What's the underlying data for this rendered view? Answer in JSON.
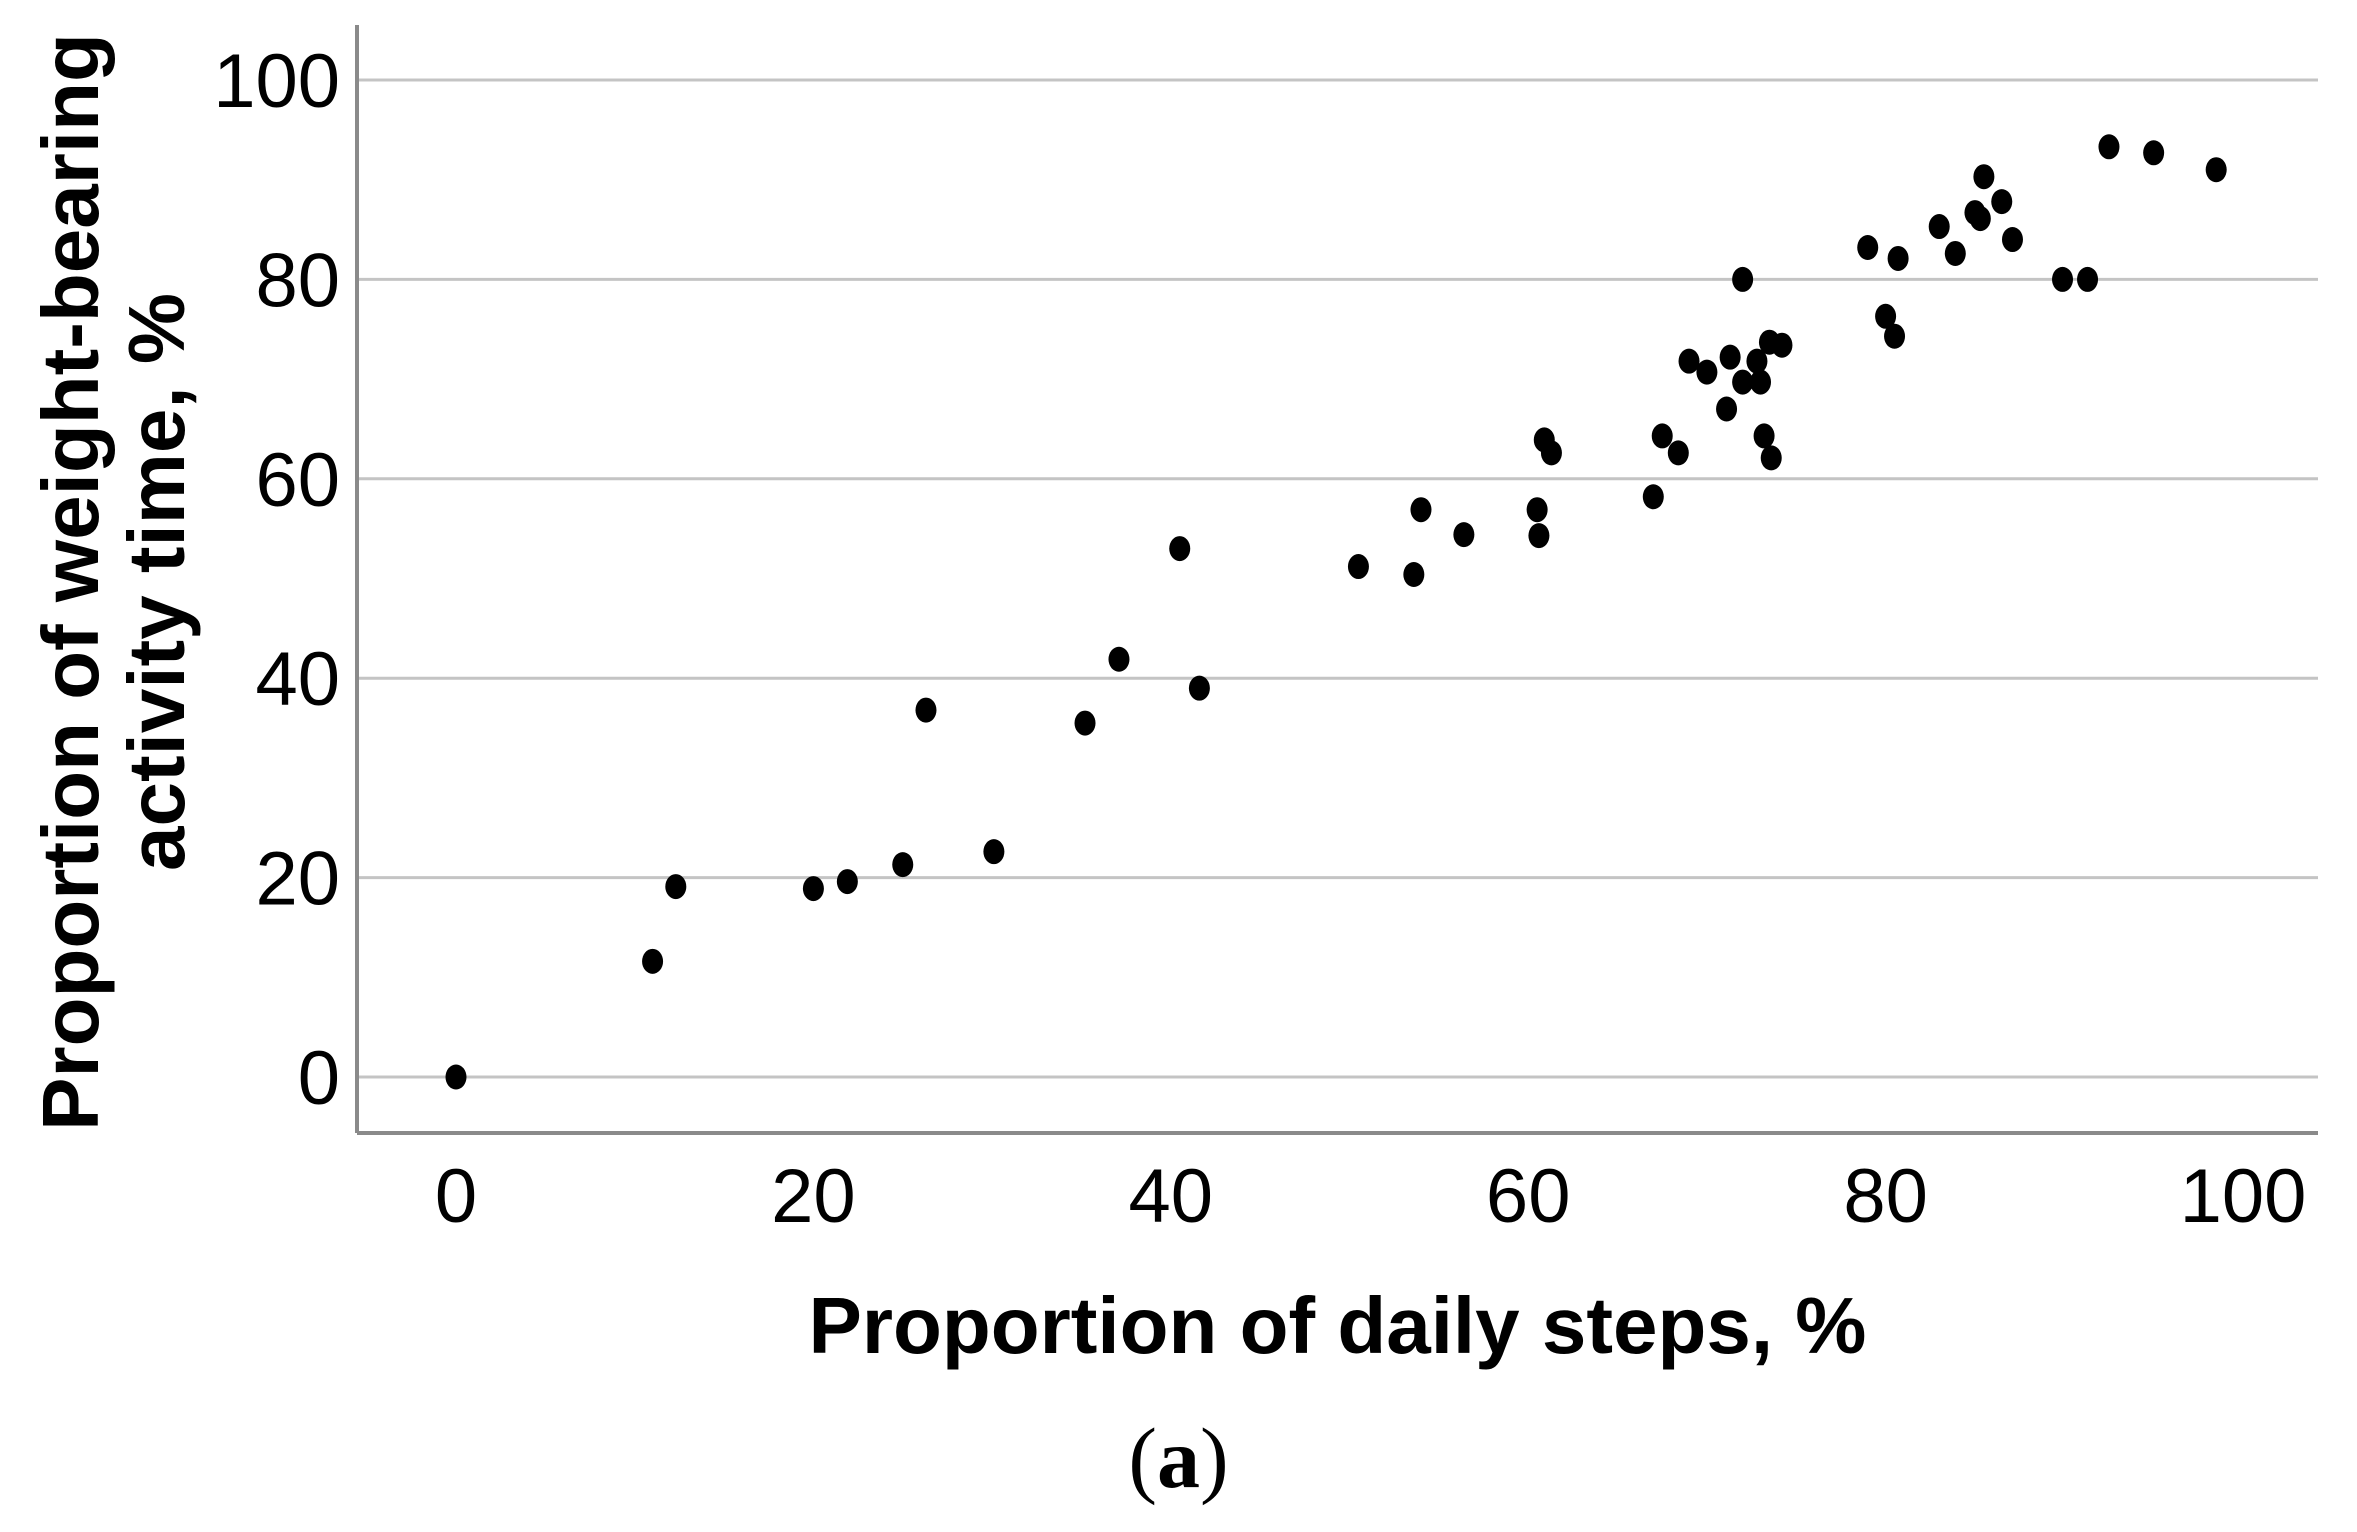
{
  "figure": {
    "caption": {
      "open": "(",
      "letter": "a",
      "close": ")"
    }
  },
  "chart_data": {
    "type": "scatter",
    "title": "",
    "xlabel": "Proportion of daily steps, %",
    "ylabel_lines": [
      "Proportion of weight-bearing",
      "activity time, %"
    ],
    "xlim": [
      -5.5,
      104.5
    ],
    "ylim": [
      -5.6,
      105.6
    ],
    "xticks": [
      0,
      20,
      40,
      60,
      80,
      100
    ],
    "yticks": [
      0,
      20,
      40,
      60,
      80,
      100
    ],
    "grid": "horizontal",
    "legend": "none",
    "marker": {
      "shape": "dot",
      "color": "#000000"
    },
    "colors": {
      "grid": "#c4c4c4",
      "axis": "#8a8a8a",
      "text": "#000000",
      "background": "#ffffff"
    },
    "points": [
      [
        0,
        0
      ],
      [
        11,
        11.6
      ],
      [
        12.3,
        19.1
      ],
      [
        20,
        18.9
      ],
      [
        21.9,
        19.6
      ],
      [
        25,
        21.3
      ],
      [
        30.1,
        22.6
      ],
      [
        26.3,
        36.8
      ],
      [
        35.2,
        35.5
      ],
      [
        37.1,
        41.9
      ],
      [
        40.5,
        53
      ],
      [
        41.6,
        39
      ],
      [
        50.5,
        51.2
      ],
      [
        53.6,
        50.4
      ],
      [
        54,
        56.9
      ],
      [
        56.4,
        54.4
      ],
      [
        60.9,
        63.9
      ],
      [
        61.3,
        62.6
      ],
      [
        60.5,
        56.9
      ],
      [
        60.6,
        54.3
      ],
      [
        67.5,
        64.3
      ],
      [
        68.4,
        62.6
      ],
      [
        67,
        58.2
      ],
      [
        69,
        71.8
      ],
      [
        70,
        70.7
      ],
      [
        71.3,
        72.2
      ],
      [
        72.8,
        71.8
      ],
      [
        72,
        69.7
      ],
      [
        73,
        69.7
      ],
      [
        71.1,
        67
      ],
      [
        73.5,
        73.7
      ],
      [
        74.2,
        73.4
      ],
      [
        73.2,
        64.3
      ],
      [
        73.6,
        62.1
      ],
      [
        72,
        80
      ],
      [
        79,
        83.2
      ],
      [
        80.7,
        82.1
      ],
      [
        80,
        76.3
      ],
      [
        80.5,
        74.3
      ],
      [
        83,
        85.3
      ],
      [
        83.9,
        82.6
      ],
      [
        85,
        86.7
      ],
      [
        85.3,
        86.1
      ],
      [
        85.5,
        90.3
      ],
      [
        86.5,
        87.8
      ],
      [
        87.1,
        84
      ],
      [
        89.9,
        80
      ],
      [
        91.3,
        80
      ],
      [
        92.5,
        93.3
      ],
      [
        95,
        92.7
      ],
      [
        98.5,
        91
      ]
    ]
  }
}
